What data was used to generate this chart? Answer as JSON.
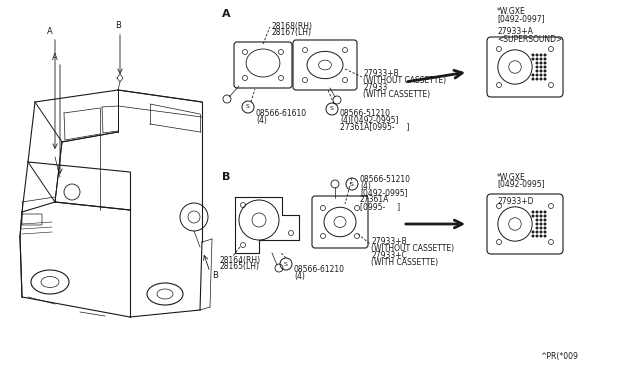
{
  "bg_color": "#ffffff",
  "line_color": "#1a1a1a",
  "text_color": "#1a1a1a",
  "parts": {
    "bracket_rh": "28168(RH)",
    "bracket_lh": "28167(LH)",
    "spk_a_wo": "27933+B",
    "spk_a_wo_lbl": "(WITHOUT CASSETTE)",
    "spk_a_w": "27933",
    "spk_a_w_lbl": "(WITH CASSETTE)",
    "screw_a1_pn": "08566-61610",
    "screw_a1_qty": "(4)",
    "screw_a2_pn": "08566-51210",
    "screw_a2_qty": "(4)[0492-0995]",
    "screw_a2_ref": "27361A[0995-     ]",
    "bracket2_rh": "28164(RH)",
    "bracket2_lh": "28165(LH)",
    "spk_b_wo": "27933+B",
    "spk_b_wo_lbl": "(WITHOUT CASSETTE)",
    "spk_b_w": "27933+C",
    "spk_b_w_lbl": "(WITH CASSETTE)",
    "screw_b1_pn": "08566-61210",
    "screw_b1_qty": "(4)",
    "screw_b2_pn": "08566-51210",
    "screw_b2_qty": "(4)",
    "screw_b2_date": "[0492-0995]",
    "screw_b2_ref1": "27361A",
    "screw_b2_ref2": "[0995-     ]",
    "wgxe_top_label": "*W.GXE",
    "wgxe_top_date": "[0492-0997]",
    "wgxe_top_pn": "27933+A",
    "wgxe_top_name": "<SUPERSOUND>",
    "wgxe_bot_label": "*W.GXE",
    "wgxe_bot_date": "[0492-0995]",
    "wgxe_bot_pn": "27933+D",
    "footer": "^PR(*009",
    "sec_a": "A",
    "sec_b": "B",
    "ref_a1": "A",
    "ref_a2": "A",
    "ref_b1": "B",
    "ref_b2": "B"
  }
}
